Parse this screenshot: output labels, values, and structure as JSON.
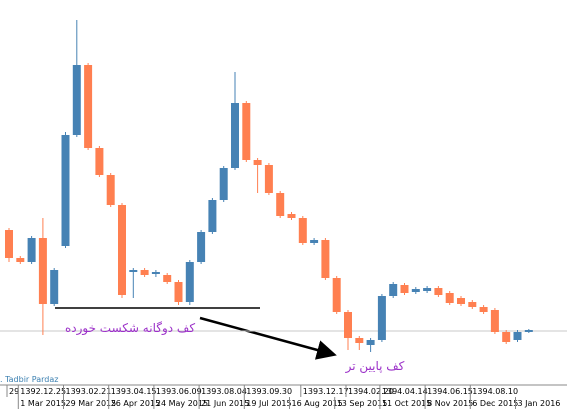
{
  "chart_data": {
    "type": "candlestick",
    "watermark": ". Tadbir Pardaz",
    "annotations": [
      "کف دوگانه شکست خورده",
      "کف پایین تر"
    ],
    "up_color": "#4682b4",
    "down_color": "#ff7f50",
    "ylim": [
      0,
      385
    ],
    "price_line": 54,
    "categories": [
      null,
      "1 Mar 2015",
      null,
      null,
      null,
      "29 Mar 2015",
      null,
      null,
      null,
      "26 Apr 2015",
      null,
      null,
      null,
      "24 May 2015",
      null,
      null,
      null,
      "21 Jun 2015",
      null,
      null,
      null,
      "19 Jul 2015",
      null,
      null,
      null,
      "16 Aug 2015",
      null,
      null,
      null,
      "13 Sep 2015",
      null,
      null,
      null,
      "11 Oct 2015",
      null,
      null,
      null,
      "8 Nov 2015",
      null,
      null,
      null,
      "6 Dec 2015",
      null,
      null,
      null,
      "3 Jan 2016",
      null
    ],
    "persian_categories": [
      "29",
      "1392.12.25",
      null,
      null,
      null,
      "1393.02.21",
      null,
      null,
      null,
      "1393.04.15",
      null,
      null,
      null,
      "1393.06.09",
      null,
      null,
      null,
      "1393.08.04",
      null,
      null,
      null,
      "1393.09.30",
      null,
      null,
      null,
      null,
      "1393.12.17",
      null,
      null,
      null,
      "1394.02.20",
      null,
      null,
      "1394.04.14",
      null,
      null,
      null,
      "1394.06.15",
      null,
      null,
      null,
      "1394.08.10",
      null,
      null,
      null,
      null,
      null
    ],
    "open": [
      155,
      127,
      123,
      147,
      81,
      139,
      250,
      320,
      237,
      210,
      180,
      113,
      115,
      111,
      110,
      103,
      83,
      123,
      153,
      185,
      217,
      282,
      225,
      220,
      192,
      171,
      167,
      142,
      145,
      107,
      73,
      47,
      40,
      45,
      89,
      100,
      93,
      94,
      97,
      92,
      87,
      83,
      78,
      75,
      53,
      45,
      53
    ],
    "close": [
      127,
      123,
      147,
      81,
      115,
      250,
      320,
      237,
      210,
      180,
      90,
      115,
      110,
      113,
      103,
      83,
      123,
      153,
      185,
      217,
      282,
      225,
      220,
      192,
      169,
      167,
      142,
      145,
      107,
      73,
      47,
      42,
      45,
      89,
      101,
      92,
      96,
      97,
      90,
      82,
      81,
      78,
      73,
      53,
      43,
      53,
      55
    ],
    "high": [
      157,
      129,
      149,
      167,
      117,
      253,
      365,
      322,
      239,
      212,
      182,
      117,
      117,
      115,
      112,
      105,
      125,
      155,
      187,
      219,
      313,
      284,
      227,
      222,
      194,
      173,
      169,
      147,
      147,
      109,
      75,
      49,
      47,
      91,
      103,
      102,
      98,
      99,
      99,
      94,
      89,
      85,
      80,
      77,
      55,
      55,
      56
    ],
    "low": [
      123,
      121,
      121,
      50,
      79,
      137,
      248,
      235,
      208,
      178,
      87,
      87,
      108,
      108,
      101,
      80,
      80,
      121,
      151,
      183,
      215,
      223,
      192,
      190,
      167,
      165,
      140,
      140,
      105,
      71,
      35,
      35,
      33,
      43,
      87,
      90,
      91,
      92,
      88,
      80,
      79,
      76,
      71,
      51,
      41,
      43,
      52
    ]
  }
}
